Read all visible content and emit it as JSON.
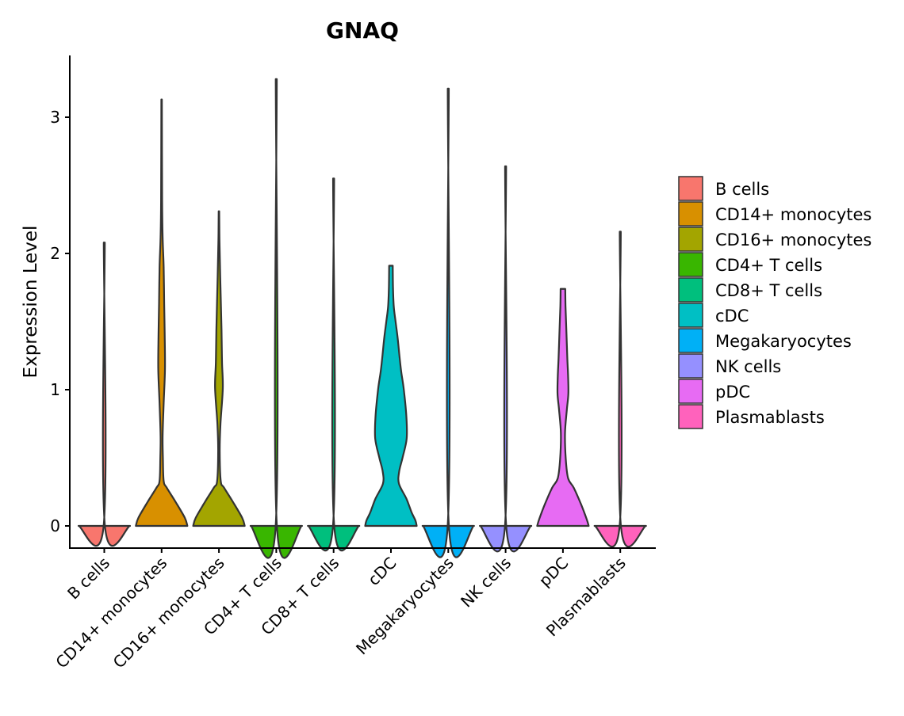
{
  "chart_data": {
    "type": "violin",
    "title": "GNAQ",
    "xlabel": "",
    "ylabel": "Expression Level",
    "ylim": [
      -0.16,
      3.45
    ],
    "yticks": [
      0,
      1,
      2,
      3
    ],
    "grid": false,
    "legend_position": "right",
    "categories": [
      "B cells",
      "CD14+ monocytes",
      "CD16+ monocytes",
      "CD4+ T cells",
      "CD8+ T cells",
      "cDC",
      "Megakaryocytes",
      "NK cells",
      "pDC",
      "Plasmablasts"
    ],
    "colors": [
      "#F8766D",
      "#D89000",
      "#A3A500",
      "#39B600",
      "#00BF7D",
      "#00BFC4",
      "#00B0F6",
      "#9590FF",
      "#E76BF3",
      "#FF62BC"
    ],
    "series": [
      {
        "name": "B cells",
        "max": 2.08,
        "density": [
          [
            0,
            1
          ],
          [
            0.01,
            0.02
          ],
          [
            2.08,
            0.02
          ]
        ]
      },
      {
        "name": "CD14+ monocytes",
        "max": 3.13,
        "density": [
          [
            0,
            1
          ],
          [
            0.06,
            0.9
          ],
          [
            0.18,
            0.53
          ],
          [
            0.28,
            0.2
          ],
          [
            0.33,
            0.08
          ],
          [
            0.5,
            0.05
          ],
          [
            0.66,
            0.04
          ],
          [
            0.9,
            0.08
          ],
          [
            1.15,
            0.13
          ],
          [
            1.4,
            0.12
          ],
          [
            1.63,
            0.1
          ],
          [
            1.9,
            0.08
          ],
          [
            2.12,
            0.04
          ],
          [
            2.4,
            0.02
          ],
          [
            3.13,
            0.01
          ]
        ]
      },
      {
        "name": "CD16+ monocytes",
        "max": 2.31,
        "density": [
          [
            0,
            1
          ],
          [
            0.06,
            0.9
          ],
          [
            0.18,
            0.53
          ],
          [
            0.28,
            0.2
          ],
          [
            0.33,
            0.07
          ],
          [
            0.55,
            0.03
          ],
          [
            0.75,
            0.06
          ],
          [
            1.01,
            0.15
          ],
          [
            1.2,
            0.12
          ],
          [
            1.44,
            0.1
          ],
          [
            1.83,
            0.05
          ],
          [
            2.1,
            0.02
          ],
          [
            2.31,
            0.01
          ]
        ]
      },
      {
        "name": "CD4+ T cells",
        "max": 3.28,
        "density": [
          [
            0,
            1
          ],
          [
            0.01,
            0.02
          ],
          [
            3.28,
            0.02
          ]
        ]
      },
      {
        "name": "CD8+ T cells",
        "max": 2.55,
        "density": [
          [
            0,
            1
          ],
          [
            0.01,
            0.02
          ],
          [
            2.55,
            0.02
          ]
        ]
      },
      {
        "name": "cDC",
        "max": 1.91,
        "density": [
          [
            0,
            1
          ],
          [
            0.04,
            0.95
          ],
          [
            0.1,
            0.8
          ],
          [
            0.2,
            0.6
          ],
          [
            0.31,
            0.31
          ],
          [
            0.4,
            0.32
          ],
          [
            0.5,
            0.45
          ],
          [
            0.64,
            0.61
          ],
          [
            0.8,
            0.6
          ],
          [
            1.0,
            0.5
          ],
          [
            1.13,
            0.4
          ],
          [
            1.23,
            0.34
          ],
          [
            1.38,
            0.26
          ],
          [
            1.5,
            0.18
          ],
          [
            1.61,
            0.11
          ],
          [
            1.75,
            0.08
          ],
          [
            1.91,
            0.07
          ]
        ]
      },
      {
        "name": "Megakaryocytes",
        "max": 3.21,
        "density": [
          [
            0,
            1
          ],
          [
            0.01,
            0.02
          ],
          [
            3.21,
            0.02
          ]
        ]
      },
      {
        "name": "NK cells",
        "max": 2.64,
        "density": [
          [
            0,
            1
          ],
          [
            0.01,
            0.02
          ],
          [
            2.64,
            0.02
          ]
        ]
      },
      {
        "name": "pDC",
        "max": 1.74,
        "density": [
          [
            0,
            1
          ],
          [
            0.05,
            0.92
          ],
          [
            0.16,
            0.7
          ],
          [
            0.28,
            0.42
          ],
          [
            0.35,
            0.2
          ],
          [
            0.49,
            0.11
          ],
          [
            0.68,
            0.08
          ],
          [
            0.85,
            0.15
          ],
          [
            0.97,
            0.21
          ],
          [
            1.1,
            0.2
          ],
          [
            1.23,
            0.17
          ],
          [
            1.45,
            0.13
          ],
          [
            1.61,
            0.1
          ],
          [
            1.74,
            0.09
          ]
        ]
      },
      {
        "name": "Plasmablasts",
        "max": 2.16,
        "density": [
          [
            0,
            1
          ],
          [
            0.01,
            0.02
          ],
          [
            2.16,
            0.02
          ]
        ]
      }
    ]
  }
}
